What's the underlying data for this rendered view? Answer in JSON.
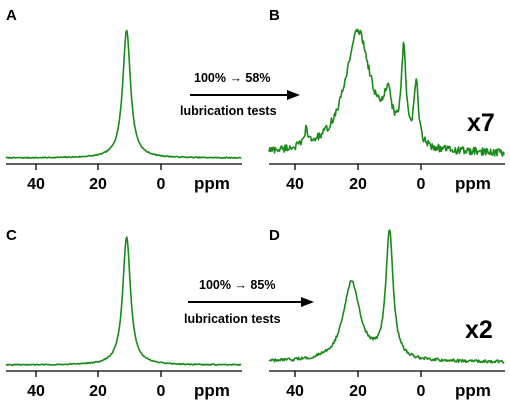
{
  "colors": {
    "trace": "#1a8a1a",
    "text": "#000000"
  },
  "chart_data": [
    {
      "panel": "A",
      "type": "line",
      "xlabel": "ppm",
      "xlim": [
        50,
        -5
      ],
      "ticks": [
        40,
        20,
        0
      ],
      "tick_labels": [
        "40",
        "20",
        "0"
      ],
      "peaks": [
        {
          "ppm": 11,
          "height": 1.0,
          "width": 1.5
        }
      ],
      "noise": 0.004
    },
    {
      "panel": "B",
      "type": "line",
      "xlabel": "ppm",
      "xlim": [
        50,
        -5
      ],
      "ticks": [
        40,
        20,
        0
      ],
      "tick_labels": [
        "40",
        "20",
        "0"
      ],
      "magnification": "x7",
      "peaks": [
        {
          "ppm": 20,
          "height": 0.95,
          "width": 5.0
        },
        {
          "ppm": 10.5,
          "height": 0.3,
          "width": 1.6
        },
        {
          "ppm": 5.5,
          "height": 0.7,
          "width": 0.9
        },
        {
          "ppm": 1.5,
          "height": 0.48,
          "width": 0.8
        },
        {
          "ppm": 36.5,
          "height": 0.12,
          "width": 0.6
        }
      ],
      "noise": 0.03
    },
    {
      "panel": "C",
      "type": "line",
      "xlabel": "ppm",
      "xlim": [
        50,
        -5
      ],
      "ticks": [
        40,
        20,
        0
      ],
      "tick_labels": [
        "40",
        "20",
        "0"
      ],
      "peaks": [
        {
          "ppm": 11,
          "height": 1.0,
          "width": 1.5
        }
      ],
      "noise": 0.004
    },
    {
      "panel": "D",
      "type": "line",
      "xlabel": "ppm",
      "xlim": [
        50,
        -5
      ],
      "ticks": [
        40,
        20,
        0
      ],
      "tick_labels": [
        "40",
        "20",
        "0"
      ],
      "magnification": "x2",
      "peaks": [
        {
          "ppm": 22,
          "height": 0.62,
          "width": 3.2
        },
        {
          "ppm": 10,
          "height": 1.0,
          "width": 1.4
        }
      ],
      "noise": 0.012
    }
  ],
  "annotations": [
    {
      "arrow_label": "100% → 58%",
      "caption": "lubrication tests"
    },
    {
      "arrow_label": "100% → 85%",
      "caption": "lubrication tests"
    }
  ]
}
